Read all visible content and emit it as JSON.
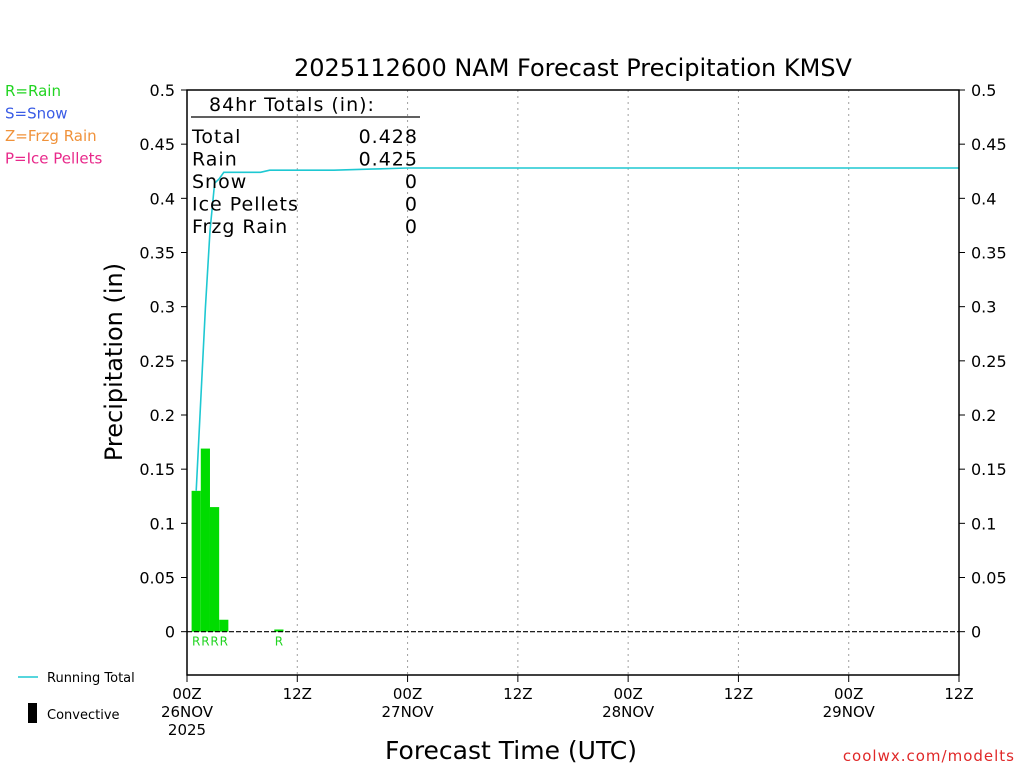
{
  "chart_data": {
    "type": "bar",
    "title": "2025112600 NAM Forecast Precipitation KMSV",
    "xlabel": "Forecast Time (UTC)",
    "ylabel": "Precipitation (in)",
    "ylim": [
      -0.04,
      0.5
    ],
    "xlim_hours": [
      0,
      84
    ],
    "yticks": [
      0,
      0.05,
      0.1,
      0.15,
      0.2,
      0.25,
      0.3,
      0.35,
      0.4,
      0.45,
      0.5
    ],
    "ytick_labels": [
      "0",
      "0.05",
      "0.1",
      "0.15",
      "0.2",
      "0.25",
      "0.3",
      "0.35",
      "0.4",
      "0.45",
      "0.5"
    ],
    "xticks": [
      {
        "hour": 0,
        "lines": [
          "00Z",
          "26NOV",
          "2025"
        ]
      },
      {
        "hour": 12,
        "lines": [
          "12Z"
        ]
      },
      {
        "hour": 24,
        "lines": [
          "00Z",
          "27NOV"
        ]
      },
      {
        "hour": 36,
        "lines": [
          "12Z"
        ]
      },
      {
        "hour": 48,
        "lines": [
          "00Z",
          "28NOV"
        ]
      },
      {
        "hour": 60,
        "lines": [
          "12Z"
        ]
      },
      {
        "hour": 72,
        "lines": [
          "00Z",
          "29NOV"
        ]
      },
      {
        "hour": 84,
        "lines": [
          "12Z"
        ]
      }
    ],
    "grid_vertical_hours": [
      12,
      24,
      36,
      48,
      60,
      72
    ],
    "bars": [
      {
        "start": 0.5,
        "end": 1.5,
        "value": 0.13,
        "ptype": "R"
      },
      {
        "start": 1.5,
        "end": 2.5,
        "value": 0.169,
        "ptype": "R"
      },
      {
        "start": 2.5,
        "end": 3.5,
        "value": 0.115,
        "ptype": "R"
      },
      {
        "start": 3.5,
        "end": 4.5,
        "value": 0.011,
        "ptype": "R"
      },
      {
        "start": 9.5,
        "end": 10.5,
        "value": 0.002,
        "ptype": "R"
      }
    ],
    "running_total": {
      "name": "Running Total",
      "x": [
        1,
        2,
        2.5,
        3,
        3.5,
        4,
        5,
        6,
        8,
        9,
        10,
        12,
        16,
        20,
        24,
        84
      ],
      "y": [
        0.13,
        0.299,
        0.37,
        0.414,
        0.418,
        0.424,
        0.424,
        0.424,
        0.424,
        0.426,
        0.426,
        0.426,
        0.426,
        0.427,
        0.428,
        0.428
      ]
    },
    "totals": {
      "heading": "84hr Totals (in):",
      "rows": [
        {
          "label": "Total",
          "value": "0.428"
        },
        {
          "label": "Rain",
          "value": "0.425"
        },
        {
          "label": "Snow",
          "value": "0"
        },
        {
          "label": "Ice Pellets",
          "value": "0"
        },
        {
          "label": "Frzg Rain",
          "value": "0"
        }
      ]
    },
    "ptype_legend": [
      {
        "text": "R=Rain",
        "color": "#22d422"
      },
      {
        "text": "S=Snow",
        "color": "#3a5ce6"
      },
      {
        "text": "Z=Frzg Rain",
        "color": "#f0923a"
      },
      {
        "text": "P=Ice Pellets",
        "color": "#e8288a"
      }
    ],
    "bottom_legend": [
      {
        "text": "Running Total",
        "kind": "line",
        "color": "#1ec8d2"
      },
      {
        "text": "Convective",
        "kind": "box",
        "color": "#000000"
      }
    ],
    "colors": {
      "rain_bar": "#00dc00",
      "running_total": "#1ec8d2",
      "grid": "#a0a0a0",
      "credit": "#e02828"
    },
    "credit": "coolwx.com/modelts"
  }
}
